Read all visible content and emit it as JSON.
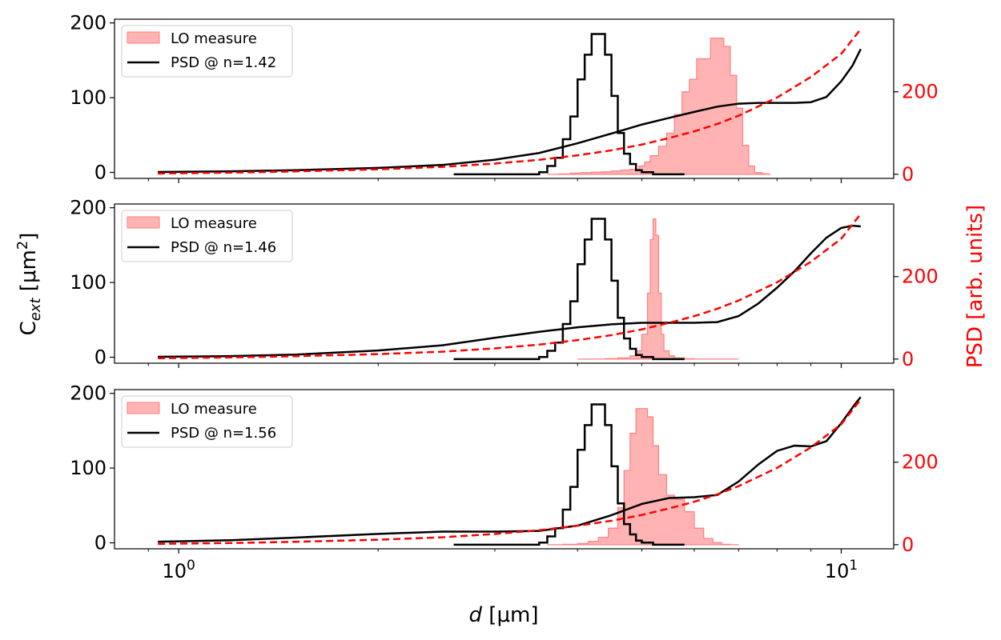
{
  "chart_data": {
    "type": "line",
    "xlabel_italic": "d",
    "xlabel_unit": " [μm]",
    "ylabel_left_main": "C",
    "ylabel_left_sub": "ext",
    "ylabel_left_unit": " [μm",
    "ylabel_left_sup": "2",
    "ylabel_left_close": "]",
    "ylabel_right": "PSD [arb. units]",
    "xscale": "log",
    "xlim": [
      0.8,
      12
    ],
    "xticks": [
      {
        "value": 1,
        "base": "10",
        "exp": "0"
      },
      {
        "value": 10,
        "base": "10",
        "exp": "1"
      }
    ],
    "ylim_left": [
      -8,
      205
    ],
    "yticks_left": [
      0,
      100,
      200
    ],
    "ylim_right": [
      -10,
      376
    ],
    "yticks_right": [
      0,
      200
    ],
    "colors": {
      "lo_fill": "#ffb3b3",
      "lo_edge": "#ff8080",
      "black": "#000000",
      "red": "#ff0000"
    },
    "psd_dashed_right": [
      [
        0.93,
        2
      ],
      [
        1.2,
        4
      ],
      [
        1.5,
        7
      ],
      [
        2.0,
        12
      ],
      [
        2.5,
        18
      ],
      [
        3.0,
        26
      ],
      [
        3.5,
        35
      ],
      [
        4.0,
        46
      ],
      [
        4.5,
        58
      ],
      [
        5.0,
        72
      ],
      [
        5.5,
        88
      ],
      [
        6.0,
        104
      ],
      [
        6.5,
        122
      ],
      [
        7.0,
        142
      ],
      [
        8.0,
        186
      ],
      [
        9.0,
        236
      ],
      [
        10.0,
        292
      ],
      [
        10.7,
        352
      ]
    ],
    "panels": [
      {
        "legend": {
          "lo_label": "LO measure",
          "psd_label": "PSD @ n=1.42"
        },
        "cext_curve": [
          [
            0.93,
            0.5
          ],
          [
            1.2,
            1.5
          ],
          [
            1.5,
            3
          ],
          [
            2.0,
            6
          ],
          [
            2.5,
            10
          ],
          [
            3.0,
            17
          ],
          [
            3.5,
            26
          ],
          [
            4.0,
            39
          ],
          [
            4.5,
            52
          ],
          [
            5.0,
            64
          ],
          [
            5.5,
            73
          ],
          [
            6.0,
            81
          ],
          [
            6.5,
            88
          ],
          [
            7.0,
            92
          ],
          [
            7.5,
            93
          ],
          [
            8.0,
            93
          ],
          [
            8.5,
            93
          ],
          [
            9.0,
            94
          ],
          [
            9.5,
            101
          ],
          [
            10.0,
            122
          ],
          [
            10.4,
            143
          ],
          [
            10.7,
            165
          ]
        ],
        "lo_hist": {
          "edges": [
            3.6,
            3.75,
            3.9,
            4.05,
            4.2,
            4.35,
            4.5,
            4.65,
            4.8,
            4.95,
            5.05,
            5.15,
            5.3,
            5.45,
            5.6,
            5.75,
            5.9,
            6.05,
            6.2,
            6.35,
            6.5,
            6.65,
            6.8,
            6.95,
            7.1,
            7.25,
            7.4,
            7.6,
            7.8
          ],
          "values": [
            0,
            1,
            3,
            4,
            5,
            6,
            8,
            10,
            12,
            20,
            30,
            45,
            68,
            100,
            145,
            200,
            230,
            280,
            280,
            330,
            330,
            310,
            240,
            160,
            70,
            20,
            4,
            1
          ]
        },
        "psd_hist": {
          "edges": [
            2.6,
            3.5,
            3.6,
            3.7,
            3.8,
            3.9,
            4.0,
            4.1,
            4.2,
            4.3,
            4.4,
            4.5,
            4.6,
            4.7,
            4.8,
            4.9,
            5.0,
            5.2,
            5.5,
            5.8
          ],
          "values": [
            0,
            5,
            20,
            40,
            85,
            140,
            230,
            290,
            340,
            340,
            290,
            190,
            100,
            50,
            25,
            10,
            5,
            0,
            0
          ]
        }
      },
      {
        "legend": {
          "lo_label": "LO measure",
          "psd_label": "PSD @ n=1.46"
        },
        "cext_curve": [
          [
            0.93,
            0.5
          ],
          [
            1.2,
            1.5
          ],
          [
            1.5,
            3.5
          ],
          [
            2.0,
            9
          ],
          [
            2.5,
            16
          ],
          [
            3.0,
            26
          ],
          [
            3.5,
            34
          ],
          [
            4.0,
            40
          ],
          [
            4.5,
            44
          ],
          [
            5.0,
            46
          ],
          [
            5.5,
            46
          ],
          [
            6.0,
            46
          ],
          [
            6.5,
            47
          ],
          [
            7.0,
            55
          ],
          [
            7.5,
            72
          ],
          [
            8.0,
            93
          ],
          [
            8.5,
            115
          ],
          [
            9.0,
            139
          ],
          [
            9.5,
            160
          ],
          [
            10.0,
            173
          ],
          [
            10.4,
            176
          ],
          [
            10.7,
            175
          ]
        ],
        "lo_hist": {
          "edges": [
            4.0,
            4.2,
            4.4,
            4.6,
            4.8,
            4.9,
            5.0,
            5.1,
            5.15,
            5.2,
            5.25,
            5.3,
            5.35,
            5.4,
            5.5,
            5.6,
            5.8,
            6.0,
            6.2,
            6.4,
            6.6,
            6.8,
            7.0
          ],
          "values": [
            0,
            0,
            1,
            3,
            8,
            20,
            60,
            160,
            290,
            340,
            300,
            160,
            60,
            20,
            8,
            3,
            1,
            0,
            0,
            0,
            0,
            0
          ]
        },
        "psd_hist": {
          "edges": [
            2.6,
            3.5,
            3.6,
            3.7,
            3.8,
            3.9,
            4.0,
            4.1,
            4.2,
            4.3,
            4.4,
            4.5,
            4.6,
            4.7,
            4.8,
            4.9,
            5.0,
            5.2,
            5.5,
            5.8
          ],
          "values": [
            0,
            5,
            20,
            40,
            85,
            140,
            230,
            290,
            340,
            340,
            290,
            190,
            100,
            50,
            25,
            10,
            5,
            0,
            0
          ]
        }
      },
      {
        "legend": {
          "lo_label": "LO measure",
          "psd_label": "PSD @ n=1.56"
        },
        "cext_curve": [
          [
            0.93,
            1.5
          ],
          [
            1.2,
            3.5
          ],
          [
            1.5,
            7
          ],
          [
            2.0,
            12
          ],
          [
            2.5,
            15
          ],
          [
            3.0,
            15
          ],
          [
            3.5,
            16
          ],
          [
            4.0,
            23
          ],
          [
            4.5,
            37
          ],
          [
            5.0,
            52
          ],
          [
            5.5,
            60
          ],
          [
            6.0,
            61
          ],
          [
            6.5,
            64
          ],
          [
            7.0,
            82
          ],
          [
            7.5,
            105
          ],
          [
            8.0,
            123
          ],
          [
            8.5,
            130
          ],
          [
            9.0,
            129
          ],
          [
            9.5,
            136
          ],
          [
            10.0,
            160
          ],
          [
            10.5,
            186
          ],
          [
            10.7,
            195
          ]
        ],
        "lo_hist": {
          "edges": [
            3.6,
            3.8,
            4.0,
            4.15,
            4.3,
            4.45,
            4.6,
            4.7,
            4.8,
            4.9,
            5.0,
            5.1,
            5.2,
            5.3,
            5.45,
            5.6,
            5.8,
            6.0,
            6.2,
            6.4,
            6.6,
            6.8,
            7.0
          ],
          "values": [
            0,
            1,
            3,
            8,
            18,
            40,
            90,
            180,
            270,
            330,
            330,
            310,
            240,
            170,
            120,
            110,
            80,
            40,
            15,
            5,
            1,
            0
          ]
        },
        "psd_hist": {
          "edges": [
            2.6,
            3.5,
            3.6,
            3.7,
            3.8,
            3.9,
            4.0,
            4.1,
            4.2,
            4.3,
            4.4,
            4.5,
            4.6,
            4.7,
            4.8,
            4.9,
            5.0,
            5.2,
            5.5,
            5.8
          ],
          "values": [
            0,
            5,
            20,
            40,
            85,
            140,
            230,
            290,
            340,
            340,
            290,
            190,
            100,
            50,
            25,
            10,
            5,
            0,
            0
          ]
        }
      }
    ]
  }
}
